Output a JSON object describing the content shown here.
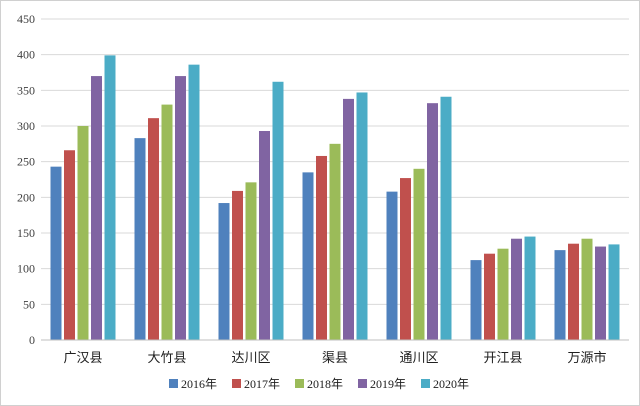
{
  "chart_data": {
    "type": "bar",
    "title": "",
    "xlabel": "",
    "ylabel": "",
    "ylim": [
      0,
      450
    ],
    "yticks": [
      0,
      50,
      100,
      150,
      200,
      250,
      300,
      350,
      400,
      450
    ],
    "grid": true,
    "legend_position": "bottom",
    "categories": [
      "广汉县",
      "大竹县",
      "达川区",
      "渠县",
      "通川区",
      "开江县",
      "万源市"
    ],
    "series": [
      {
        "name": "2016年",
        "color": "#4f81bd",
        "values": [
          243,
          283,
          192,
          235,
          208,
          112,
          126
        ]
      },
      {
        "name": "2017年",
        "color": "#c0504d",
        "values": [
          266,
          311,
          209,
          258,
          227,
          121,
          135
        ]
      },
      {
        "name": "2018年",
        "color": "#9bbb59",
        "values": [
          300,
          330,
          221,
          275,
          240,
          128,
          142
        ]
      },
      {
        "name": "2019年",
        "color": "#8064a2",
        "values": [
          370,
          370,
          293,
          338,
          332,
          142,
          131
        ]
      },
      {
        "name": "2020年",
        "color": "#4bacc6",
        "values": [
          399,
          386,
          362,
          347,
          341,
          145,
          134
        ]
      }
    ]
  }
}
